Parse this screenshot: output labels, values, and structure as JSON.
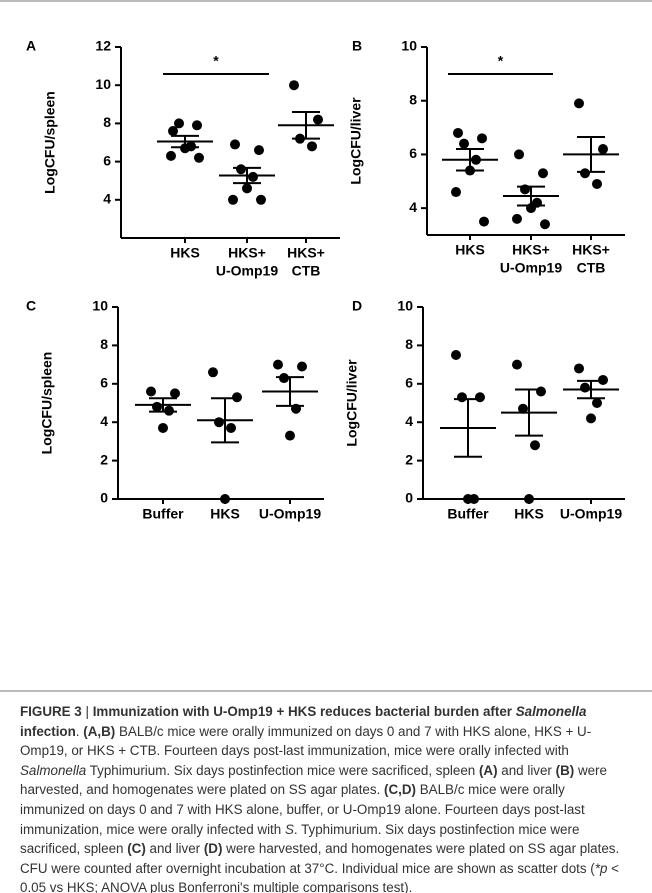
{
  "chart_data": [
    {
      "type": "dotplot",
      "panel": "A",
      "ylabel": "LogCFU/spleen",
      "categories": [
        [
          "HKS"
        ],
        [
          "HKS+",
          "U-Omp19"
        ],
        [
          "HKS+",
          "CTB"
        ]
      ],
      "groups": [
        {
          "points": [
            7.6,
            7.9,
            8.0,
            6.8,
            6.7,
            6.3,
            6.2
          ],
          "mean": 7.05,
          "sem": 0.3
        },
        {
          "points": [
            6.9,
            6.6,
            5.6,
            5.2,
            4.6,
            4.0,
            4.0
          ],
          "mean": 5.27,
          "sem": 0.4
        },
        {
          "points": [
            10.0,
            8.2,
            7.2,
            6.8
          ],
          "mean": 7.9,
          "sem": 0.7
        }
      ],
      "significance": [
        {
          "label": "*",
          "groups": [
            0,
            1
          ]
        }
      ],
      "ylim": [
        2,
        12
      ],
      "yticks": [
        4,
        6,
        8,
        10,
        12
      ],
      "color": "#000000"
    },
    {
      "type": "dotplot",
      "panel": "B",
      "ylabel": "LogCFU/liver",
      "categories": [
        [
          "HKS"
        ],
        [
          "HKS+",
          "U-Omp19"
        ],
        [
          "HKS+",
          "CTB"
        ]
      ],
      "groups": [
        {
          "points": [
            6.8,
            6.6,
            6.4,
            5.8,
            5.4,
            4.6,
            3.5
          ],
          "mean": 5.8,
          "sem": 0.4
        },
        {
          "points": [
            6.0,
            5.3,
            4.7,
            4.2,
            4.0,
            3.6,
            3.4
          ],
          "mean": 4.45,
          "sem": 0.35
        },
        {
          "points": [
            7.9,
            6.2,
            5.3,
            4.9
          ],
          "mean": 6.0,
          "sem": 0.65
        }
      ],
      "significance": [
        {
          "label": "*",
          "groups": [
            0,
            1
          ]
        }
      ],
      "ylim": [
        3,
        10
      ],
      "yticks": [
        4,
        6,
        8,
        10
      ],
      "color": "#000000"
    },
    {
      "type": "dotplot",
      "panel": "C",
      "ylabel": "LogCFU/spleen",
      "categories": [
        [
          "Buffer"
        ],
        [
          "HKS"
        ],
        [
          "U-Omp19"
        ]
      ],
      "groups": [
        {
          "points": [
            5.6,
            5.5,
            4.8,
            4.6,
            3.7
          ],
          "mean": 4.9,
          "sem": 0.35
        },
        {
          "points": [
            6.6,
            5.3,
            4.0,
            3.7,
            0
          ],
          "mean": 4.1,
          "sem": 1.15
        },
        {
          "points": [
            7.0,
            6.9,
            6.3,
            4.7,
            3.3
          ],
          "mean": 5.6,
          "sem": 0.75
        }
      ],
      "significance": [],
      "ylim": [
        0,
        10
      ],
      "yticks": [
        0,
        2,
        4,
        6,
        8,
        10
      ],
      "color": "#000000"
    },
    {
      "type": "dotplot",
      "panel": "D",
      "ylabel": "LogCFU/liver",
      "categories": [
        [
          "Buffer"
        ],
        [
          "HKS"
        ],
        [
          "U-Omp19"
        ]
      ],
      "groups": [
        {
          "points": [
            7.5,
            5.3,
            5.3,
            0,
            0
          ],
          "mean": 3.7,
          "sem": 1.5
        },
        {
          "points": [
            7.0,
            5.6,
            4.7,
            2.8,
            0
          ],
          "mean": 4.5,
          "sem": 1.2
        },
        {
          "points": [
            6.8,
            6.2,
            5.8,
            5.0,
            4.2
          ],
          "mean": 5.7,
          "sem": 0.45
        }
      ],
      "significance": [],
      "ylim": [
        0,
        10
      ],
      "yticks": [
        0,
        2,
        4,
        6,
        8,
        10
      ],
      "color": "#000000"
    }
  ],
  "caption": {
    "runs": [
      {
        "text": "FIGURE 3",
        "style": "bold"
      },
      {
        "text": " | ",
        "style": "normal"
      },
      {
        "text": "Immunization with U-Omp19 + HKS reduces bacterial burden after ",
        "style": "bold"
      },
      {
        "text": "Salmonella",
        "style": "bold-italic"
      },
      {
        "text": " infection",
        "style": "bold"
      },
      {
        "text": ". ",
        "style": "normal"
      },
      {
        "text": "(A,B)",
        "style": "bold"
      },
      {
        "text": " BALB/c mice were orally immunized on days 0 and 7 with HKS alone, HKS + U-Omp19, or HKS + CTB. Fourteen days post-last immunization, mice were orally infected with ",
        "style": "normal"
      },
      {
        "text": "Salmonella",
        "style": "italic"
      },
      {
        "text": " Typhimurium. Six days postinfection mice were sacrificed, spleen ",
        "style": "normal"
      },
      {
        "text": "(A)",
        "style": "bold"
      },
      {
        "text": " and liver ",
        "style": "normal"
      },
      {
        "text": "(B)",
        "style": "bold"
      },
      {
        "text": " were harvested, and homogenates were plated on SS agar plates. ",
        "style": "normal"
      },
      {
        "text": "(C,D)",
        "style": "bold"
      },
      {
        "text": " BALB/c mice were orally immunized on days 0 and 7 with HKS alone, buffer, or U-Omp19 alone. Fourteen days post-last immunization, mice were orally infected with ",
        "style": "normal"
      },
      {
        "text": "S",
        "style": "italic"
      },
      {
        "text": ". Typhimurium. Six days postinfection mice were sacrificed, spleen ",
        "style": "normal"
      },
      {
        "text": "(C)",
        "style": "bold"
      },
      {
        "text": " and liver ",
        "style": "normal"
      },
      {
        "text": "(D)",
        "style": "bold"
      },
      {
        "text": " were harvested, and homogenates were plated on SS agar plates. CFU were counted after overnight incubation at 37°C. Individual mice are shown as scatter dots (",
        "style": "normal"
      },
      {
        "text": "*p",
        "style": "italic"
      },
      {
        "text": " < 0.05 vs HKS; ANOVA plus Bonferroni's multiple comparisons test).",
        "style": "normal"
      }
    ]
  }
}
